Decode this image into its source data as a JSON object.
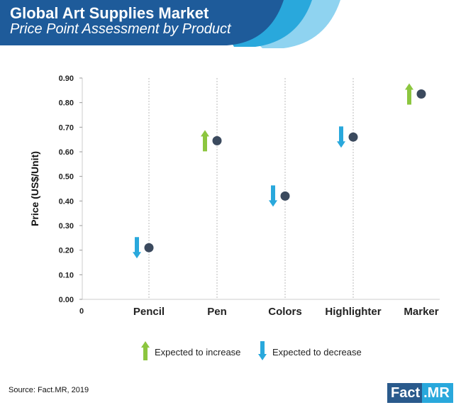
{
  "header": {
    "title": "Global Art Supplies Market",
    "subtitle": "Price Point Assessment by Product"
  },
  "chart_data": {
    "type": "scatter",
    "title": "Global Art Supplies Market",
    "subtitle": "Price Point Assessment by Product",
    "xlabel": "",
    "ylabel": "Price (US$/Unit)",
    "ylim": [
      0,
      0.9
    ],
    "yticks": [
      "0.00",
      "0.10",
      "0.20",
      "0.30",
      "0.40",
      "0.50",
      "0.60",
      "0.70",
      "0.80",
      "0.90"
    ],
    "x_origin_label": "0",
    "categories": [
      "Pencil",
      "Pen",
      "Colors",
      "Highlighter",
      "Marker"
    ],
    "values": [
      0.21,
      0.645,
      0.42,
      0.66,
      0.835
    ],
    "trend": [
      "decrease",
      "increase",
      "decrease",
      "decrease",
      "increase"
    ],
    "grid": "vertical dotted lines at categories",
    "legend": [
      {
        "label": "Expected to increase",
        "icon": "up-arrow",
        "color": "#8cc63f"
      },
      {
        "label": "Expected to decrease",
        "icon": "down-arrow",
        "color": "#29a8dc"
      }
    ],
    "legend_position": "bottom",
    "colors": {
      "point": "#3b4a5e",
      "increase": "#8cc63f",
      "decrease": "#29a8dc"
    }
  },
  "footer": {
    "source": "Source: Fact.MR, 2019",
    "logo_part1": "Fact",
    "logo_part2": ".MR"
  }
}
